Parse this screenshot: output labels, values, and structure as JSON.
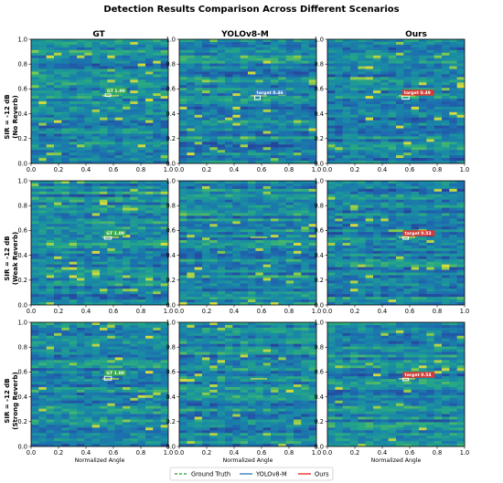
{
  "chart_data": {
    "type": "heatmap",
    "title": "Detection Results Comparison Across Different Scenarios",
    "columns": [
      {
        "title": "GT",
        "color": "#3cb043"
      },
      {
        "title": "YOLOv8-M",
        "color": "#3a7fc1"
      },
      {
        "title": "Ours",
        "color": "#e8332a"
      }
    ],
    "rows": [
      {
        "label_line1": "SIR = -12 dB",
        "label_line2": "(No Reverb)"
      },
      {
        "label_line1": "SIR = -12 dB",
        "label_line2": "(Weak Reverb)"
      },
      {
        "label_line1": "SIR = -12 dB",
        "label_line2": "(Strong Reverb)"
      }
    ],
    "xlabel": "Normalized Angle",
    "xlim": [
      0.0,
      1.0
    ],
    "ylim": [
      0.0,
      1.0
    ],
    "xticks": [
      "0.0",
      "0.2",
      "0.4",
      "0.6",
      "0.8",
      "1.0"
    ],
    "yticks": [
      "0.0",
      "0.2",
      "0.4",
      "0.6",
      "0.8",
      "1.0"
    ],
    "colormap": "viridis-like (blue-green)",
    "detections": [
      [
        {
          "label": "GT 1.00",
          "x": 0.56,
          "y": 0.55,
          "w": 0.04,
          "h": 0.02,
          "color": "#3cb043"
        },
        {
          "label": "target 0.46",
          "x": 0.57,
          "y": 0.53,
          "w": 0.04,
          "h": 0.03,
          "color": "#3a7fc1"
        },
        {
          "label": "target 0.49",
          "x": 0.57,
          "y": 0.53,
          "w": 0.05,
          "h": 0.025,
          "color": "#e8332a"
        }
      ],
      [
        {
          "label": "GT 1.00",
          "x": 0.56,
          "y": 0.54,
          "w": 0.05,
          "h": 0.02,
          "color": "#3cb043"
        },
        null,
        {
          "label": "target 0.53",
          "x": 0.57,
          "y": 0.54,
          "w": 0.04,
          "h": 0.02,
          "color": "#e8332a"
        }
      ],
      [
        {
          "label": "GT 1.00",
          "x": 0.56,
          "y": 0.55,
          "w": 0.05,
          "h": 0.03,
          "color": "#3cb043"
        },
        null,
        {
          "label": "target 0.54",
          "x": 0.57,
          "y": 0.54,
          "w": 0.04,
          "h": 0.02,
          "color": "#e8332a"
        }
      ]
    ],
    "legend": {
      "placement": "bottom-center",
      "entries": [
        {
          "name": "Ground Truth",
          "color": "#3cb043",
          "style": "dashed"
        },
        {
          "name": "YOLOv8-M",
          "color": "#3a7fc1",
          "style": "solid"
        },
        {
          "name": "Ours",
          "color": "#e8332a",
          "style": "solid"
        }
      ]
    }
  }
}
